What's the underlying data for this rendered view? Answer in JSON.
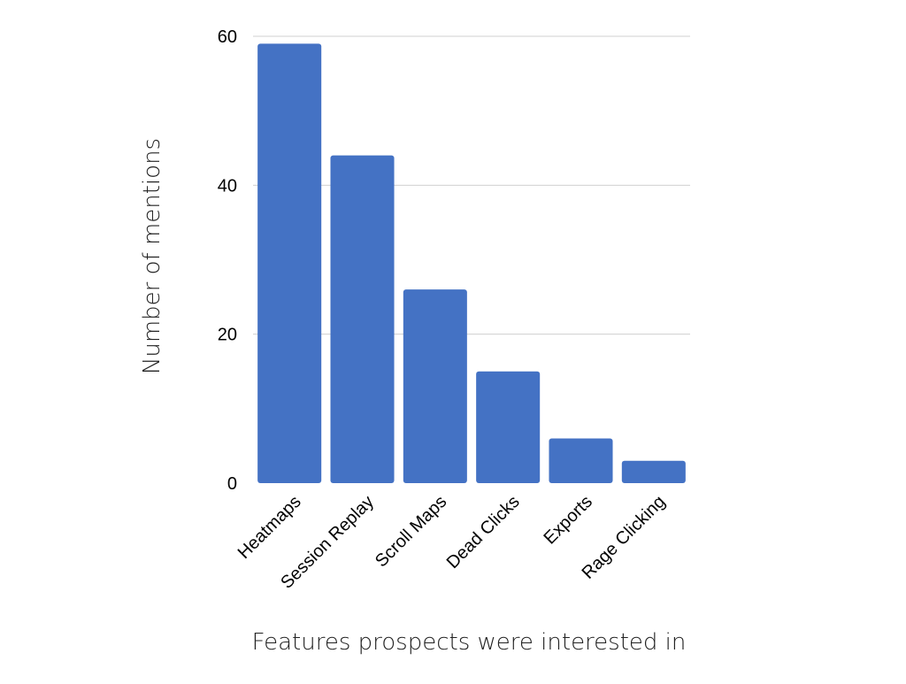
{
  "chart_data": {
    "type": "bar",
    "categories": [
      "Heatmaps",
      "Session Replay",
      "Scroll Maps",
      "Dead Clicks",
      "Exports",
      "Rage Clicking"
    ],
    "values": [
      59,
      44,
      26,
      15,
      6,
      3
    ],
    "xlabel": "Features prospects were interested in",
    "ylabel": "Number of mentions",
    "ylim": [
      0,
      60
    ],
    "yticks": [
      0,
      20,
      40,
      60
    ],
    "grid": true,
    "legend": "none",
    "bar_color": "#4472c4"
  }
}
